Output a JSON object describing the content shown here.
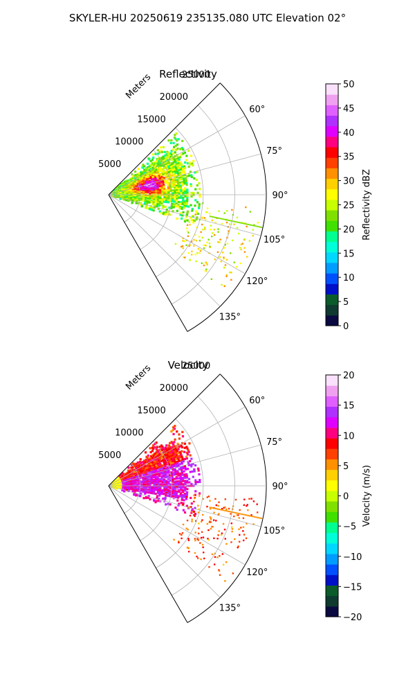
{
  "title": "SKYLER-HU  20250619  235135.080 UTC Elevation 02°",
  "range_unit_label": "Meters",
  "chart_data": [
    {
      "type": "polar-sector",
      "title": "Reflectivity",
      "range_max": 25000,
      "range_ticks": [
        5000,
        10000,
        15000,
        20000,
        25000
      ],
      "range_tick_labels": [
        "5000",
        "10000",
        "15000",
        "20000",
        "25000"
      ],
      "azimuth_range_deg": [
        45,
        150
      ],
      "azimuth_ticks": [
        60,
        75,
        90,
        105,
        120,
        135
      ],
      "azimuth_tick_labels": [
        "60°",
        "75°",
        "90°",
        "105°",
        "120°",
        "135°"
      ],
      "grid": true,
      "colorbar": {
        "label": "Reflectivity dBZ",
        "range": [
          0,
          50
        ],
        "ticks": [
          0,
          5,
          10,
          15,
          20,
          25,
          30,
          35,
          40,
          45,
          50
        ],
        "tick_labels": [
          "0",
          "5",
          "10",
          "15",
          "20",
          "25",
          "30",
          "35",
          "40",
          "45",
          "50"
        ],
        "colors": [
          "#0a0a40",
          "#0f3a30",
          "#0b5c2a",
          "#0010c8",
          "#0050ff",
          "#009cff",
          "#00d8ff",
          "#00ffd8",
          "#00ff90",
          "#40e000",
          "#80e000",
          "#c8ff00",
          "#ffff00",
          "#ffd000",
          "#ff9000",
          "#ff4000",
          "#ff0000",
          "#ff0080",
          "#e000ff",
          "#b030ff",
          "#e060ff",
          "#f0a0f0",
          "#fae0fa"
        ]
      }
    },
    {
      "type": "polar-sector",
      "title": "Velocity",
      "range_max": 25000,
      "range_ticks": [
        5000,
        10000,
        15000,
        20000,
        25000
      ],
      "range_tick_labels": [
        "5000",
        "10000",
        "15000",
        "20000",
        "25000"
      ],
      "azimuth_range_deg": [
        45,
        150
      ],
      "azimuth_ticks": [
        60,
        75,
        90,
        105,
        120,
        135
      ],
      "azimuth_tick_labels": [
        "60°",
        "75°",
        "90°",
        "105°",
        "120°",
        "135°"
      ],
      "grid": true,
      "colorbar": {
        "label": "Velocity (m/s)",
        "range": [
          -20,
          20
        ],
        "ticks": [
          -20,
          -15,
          -10,
          -5,
          0,
          5,
          10,
          15,
          20
        ],
        "tick_labels": [
          "−20",
          "−15",
          "−10",
          "−5",
          "0",
          "5",
          "10",
          "15",
          "20"
        ],
        "colors": [
          "#0a0a40",
          "#0f3a30",
          "#0b5c2a",
          "#0010c8",
          "#0050ff",
          "#009cff",
          "#00d8ff",
          "#00ffd8",
          "#00ff90",
          "#40e000",
          "#80e000",
          "#c8ff00",
          "#ffff00",
          "#ffd000",
          "#ff9000",
          "#ff4000",
          "#ff0000",
          "#ff0080",
          "#e000ff",
          "#b030ff",
          "#e060ff",
          "#f0a0f0",
          "#fae0fa"
        ]
      }
    }
  ]
}
